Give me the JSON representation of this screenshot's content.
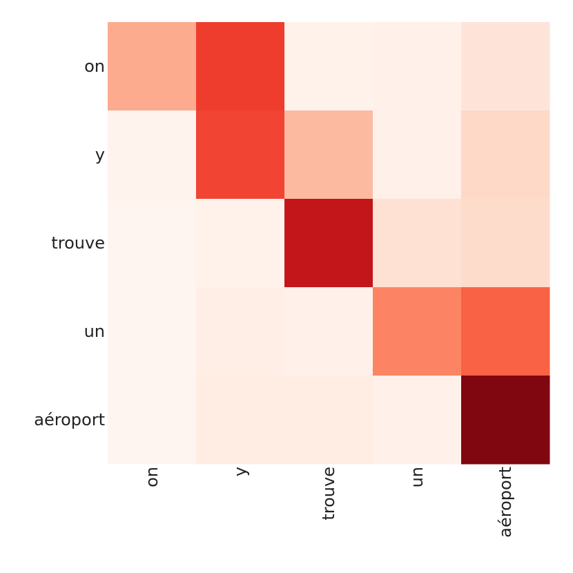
{
  "chart_data": {
    "type": "heatmap",
    "rows": [
      "on",
      "y",
      "trouve",
      "un",
      "aéroport"
    ],
    "columns": [
      "on",
      "y",
      "trouve",
      "un",
      "aéroport"
    ],
    "values": [
      [
        0.3,
        0.62,
        0.02,
        0.03,
        0.1
      ],
      [
        0.01,
        0.6,
        0.25,
        0.03,
        0.15
      ],
      [
        0.0,
        0.02,
        0.78,
        0.12,
        0.14
      ],
      [
        0.0,
        0.04,
        0.03,
        0.42,
        0.52
      ],
      [
        0.0,
        0.05,
        0.05,
        0.03,
        0.95
      ]
    ],
    "value_range": [
      0,
      1
    ],
    "colormap": "Reds",
    "colormap_stops": [
      "#fff5f0",
      "#fee0d2",
      "#fcbba1",
      "#fc9272",
      "#fb6a4a",
      "#ef3b2c",
      "#cb181d",
      "#a50f15",
      "#67000d"
    ],
    "grid": false,
    "legend": "none",
    "x_tick_rotation": "vertical"
  }
}
